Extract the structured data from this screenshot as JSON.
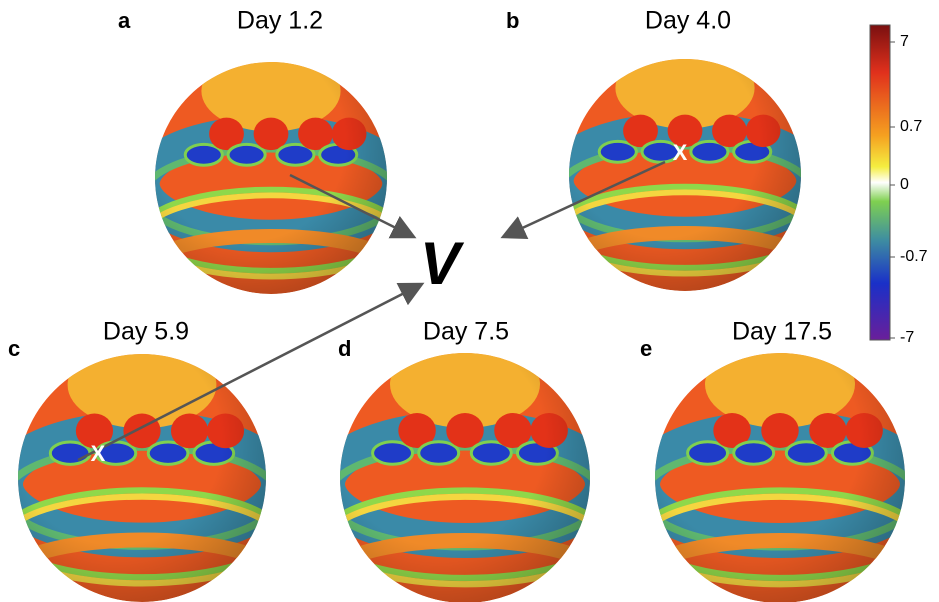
{
  "panels": [
    {
      "label": "a",
      "title": "Day 1.2"
    },
    {
      "label": "b",
      "title": "Day 4.0",
      "marker": "X"
    },
    {
      "label": "c",
      "title": "Day 5.9",
      "marker": "X"
    },
    {
      "label": "d",
      "title": "Day 7.5"
    },
    {
      "label": "e",
      "title": "Day 17.5"
    }
  ],
  "center_label": "V",
  "colorbar": {
    "ticks": [
      "7",
      "0.7",
      "0",
      "-0.7",
      "-7"
    ]
  }
}
